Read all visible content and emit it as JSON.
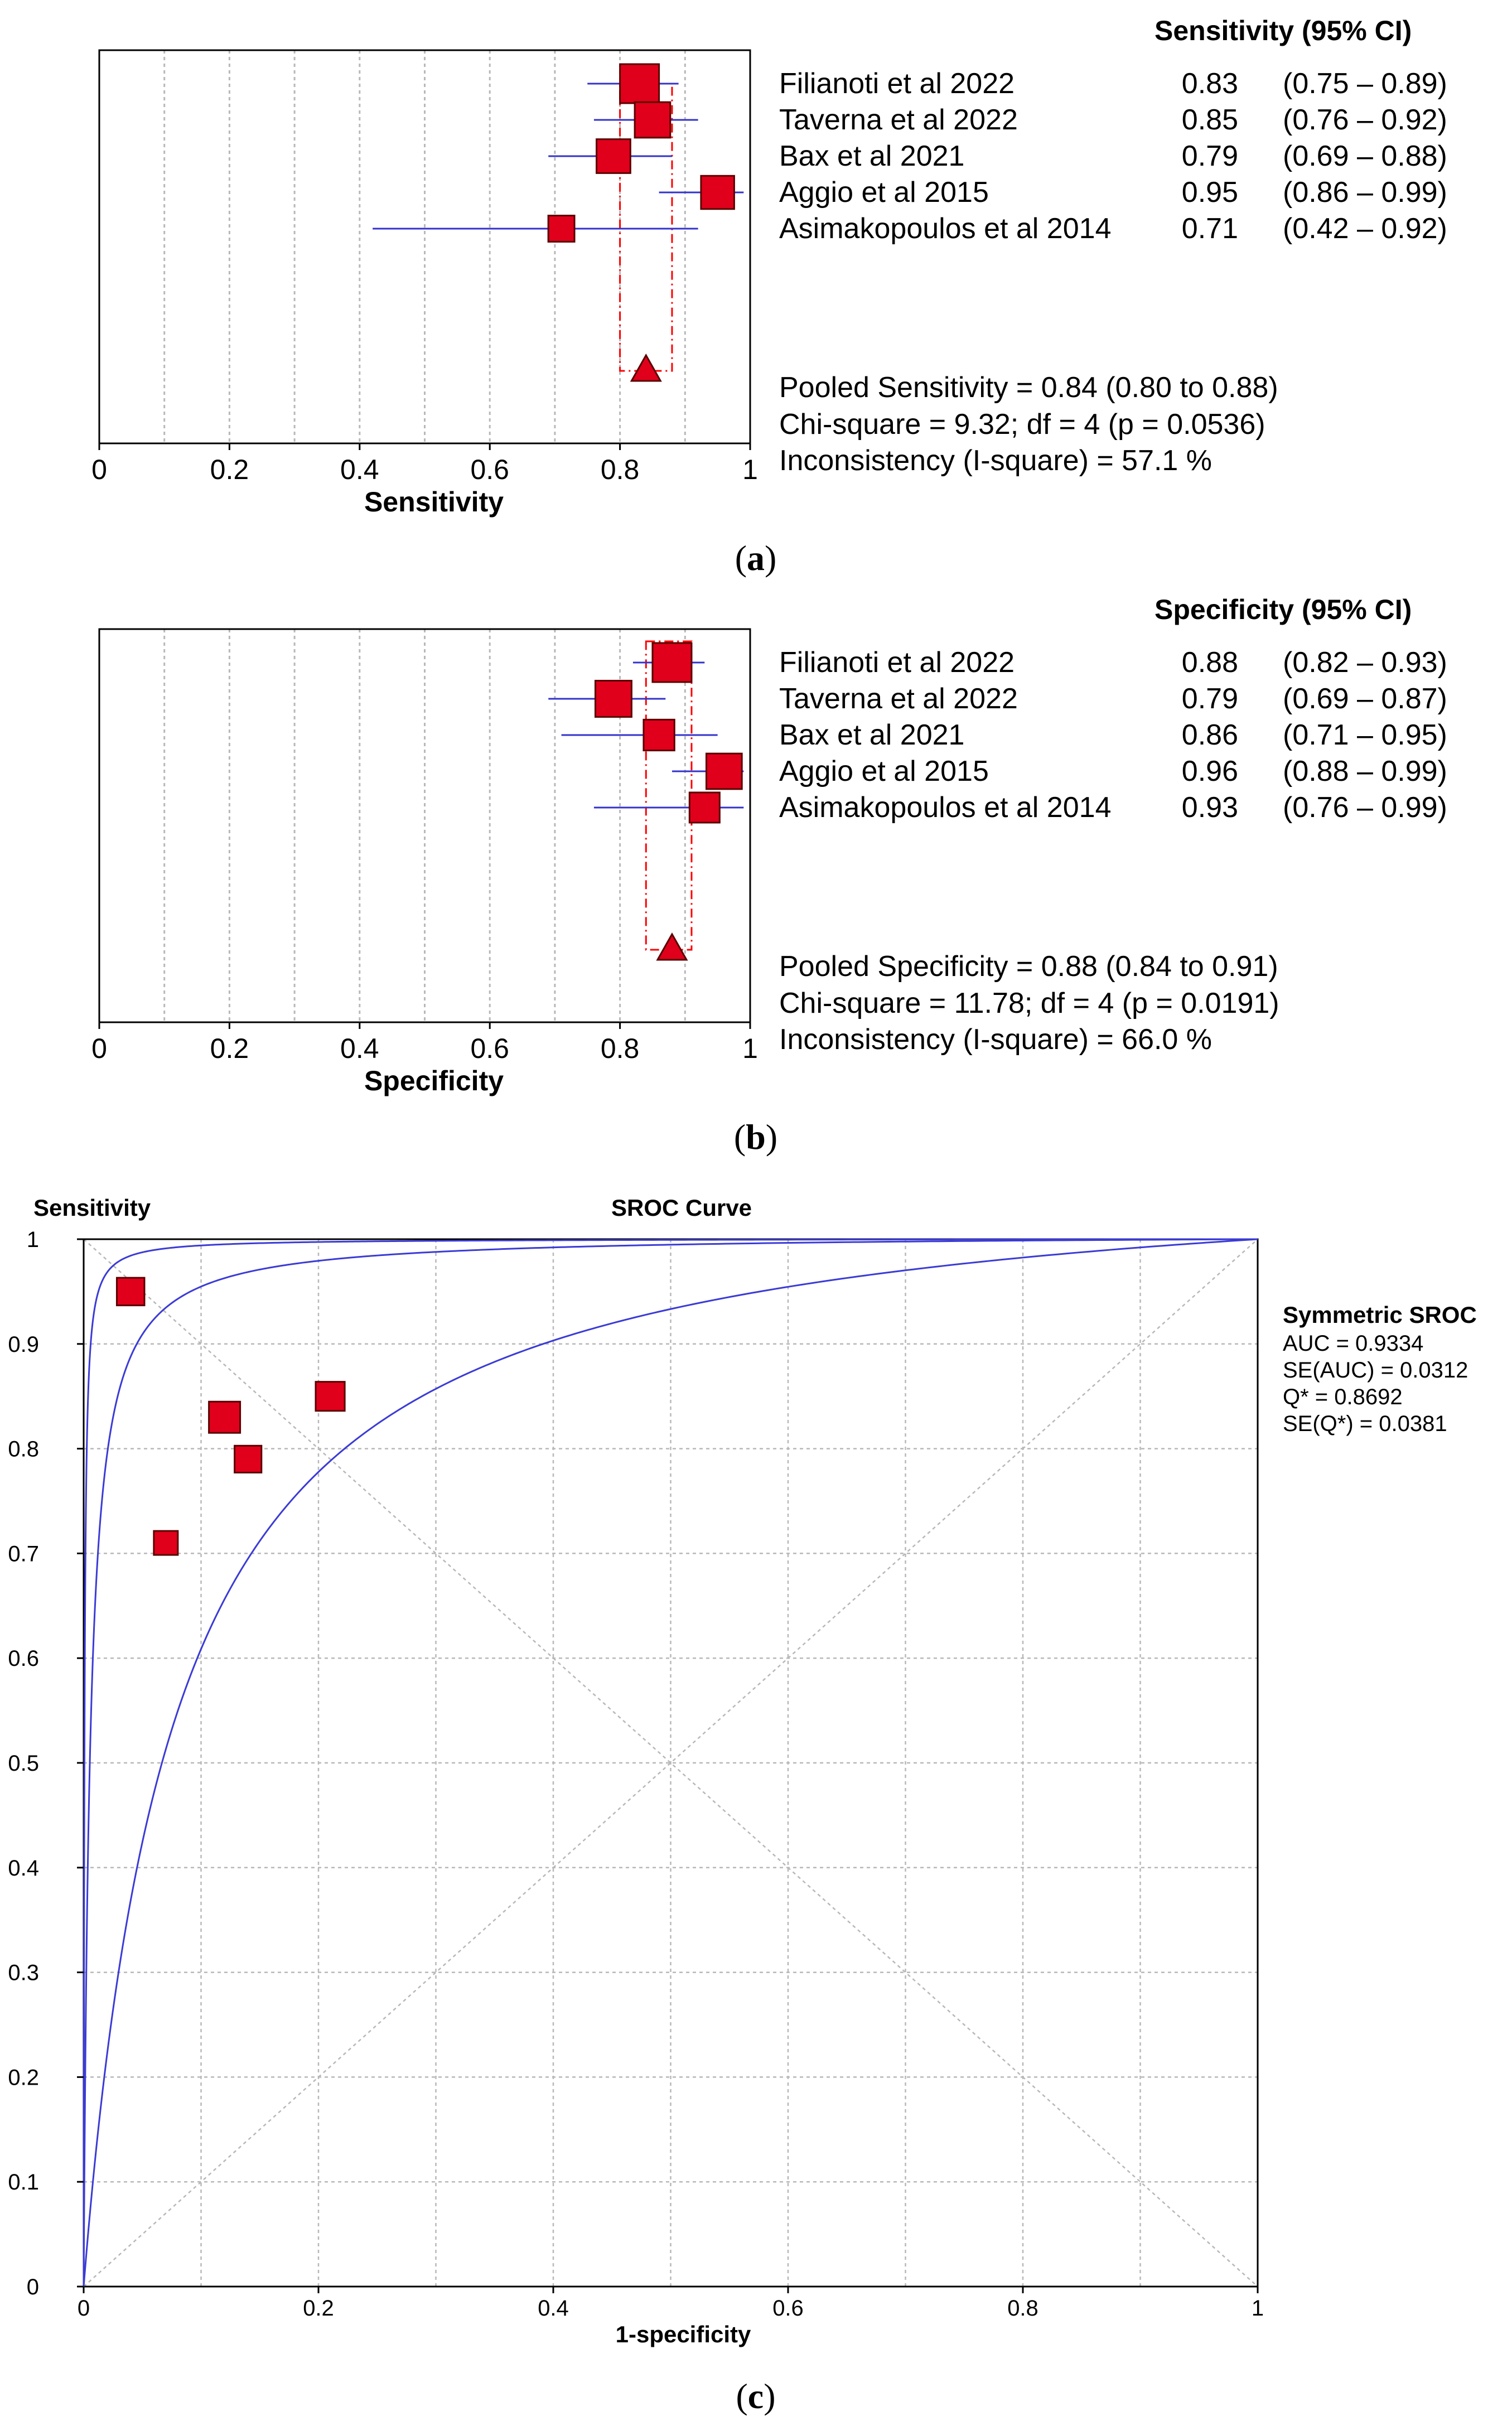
{
  "colors": {
    "marker_fill": "#e0001b",
    "marker_stroke": "#5a0000",
    "ci_line": "#3333cc",
    "pooled_line": "#ff0000",
    "grid": "#b8b8b8",
    "sroc_curve": "#3b3bd6",
    "frame": "#000000"
  },
  "chart_data": [
    {
      "panel": "a",
      "type": "forest",
      "panel_label_letter": "a",
      "panel_label": "(a)",
      "xlabel": "Sensitivity",
      "xlim": [
        0,
        1
      ],
      "x_ticks": [
        0,
        0.2,
        0.4,
        0.6,
        0.8,
        1
      ],
      "tick_labels": [
        "0",
        "0.2",
        "0.4",
        "0.6",
        "0.8",
        "1"
      ],
      "grid_x": [
        0.1,
        0.2,
        0.3,
        0.4,
        0.5,
        0.6,
        0.7,
        0.8,
        0.9
      ],
      "table_header": "Sensitivity (95% CI)",
      "studies": [
        {
          "name": "Filianoti et al 2022",
          "estimate": 0.83,
          "lower": 0.75,
          "upper": 0.89,
          "value_text": "0.83",
          "ci_text": "(0.75 – 0.89)",
          "weight": 1.0
        },
        {
          "name": "Taverna et al 2022",
          "estimate": 0.85,
          "lower": 0.76,
          "upper": 0.92,
          "value_text": "0.85",
          "ci_text": "(0.76 – 0.92)",
          "weight": 0.85
        },
        {
          "name": "Bax et al 2021",
          "estimate": 0.79,
          "lower": 0.69,
          "upper": 0.88,
          "value_text": "0.79",
          "ci_text": "(0.69 – 0.88)",
          "weight": 0.78
        },
        {
          "name": "Aggio et al 2015",
          "estimate": 0.95,
          "lower": 0.86,
          "upper": 0.99,
          "value_text": "0.95",
          "ci_text": "(0.86 – 0.99)",
          "weight": 0.75
        },
        {
          "name": "Asimakopoulos et al 2014",
          "estimate": 0.71,
          "lower": 0.42,
          "upper": 0.92,
          "value_text": "0.71",
          "ci_text": "(0.42 – 0.92)",
          "weight": 0.45
        }
      ],
      "pooled": {
        "estimate": 0.84,
        "lower": 0.8,
        "upper": 0.88
      },
      "summary_lines": [
        "Pooled Sensitivity =  0.84  (0.80 to 0.88)",
        "Chi-square = 9.32; df =  4 (p = 0.0536)",
        "Inconsistency (I-square) = 57.1 %"
      ]
    },
    {
      "panel": "b",
      "type": "forest",
      "panel_label_letter": "b",
      "panel_label": "(b)",
      "xlabel": "Specificity",
      "xlim": [
        0,
        1
      ],
      "x_ticks": [
        0,
        0.2,
        0.4,
        0.6,
        0.8,
        1
      ],
      "tick_labels": [
        "0",
        "0.2",
        "0.4",
        "0.6",
        "0.8",
        "1"
      ],
      "grid_x": [
        0.1,
        0.2,
        0.3,
        0.4,
        0.5,
        0.6,
        0.7,
        0.8,
        0.9
      ],
      "table_header": "Specificity (95% CI)",
      "studies": [
        {
          "name": "Filianoti et al 2022",
          "estimate": 0.88,
          "lower": 0.82,
          "upper": 0.93,
          "value_text": "0.88",
          "ci_text": "(0.82 – 0.93)",
          "weight": 1.0
        },
        {
          "name": "Taverna et al 2022",
          "estimate": 0.79,
          "lower": 0.69,
          "upper": 0.87,
          "value_text": "0.79",
          "ci_text": "(0.69 – 0.87)",
          "weight": 0.88
        },
        {
          "name": "Bax et al 2021",
          "estimate": 0.86,
          "lower": 0.71,
          "upper": 0.95,
          "value_text": "0.86",
          "ci_text": "(0.71 – 0.95)",
          "weight": 0.65
        },
        {
          "name": "Aggio et al 2015",
          "estimate": 0.96,
          "lower": 0.88,
          "upper": 0.99,
          "value_text": "0.96",
          "ci_text": "(0.88 – 0.99)",
          "weight": 0.85
        },
        {
          "name": "Asimakopoulos et al 2014",
          "estimate": 0.93,
          "lower": 0.76,
          "upper": 0.99,
          "value_text": "0.93",
          "ci_text": "(0.76 – 0.99)",
          "weight": 0.62
        }
      ],
      "pooled": {
        "estimate": 0.88,
        "lower": 0.84,
        "upper": 0.91
      },
      "summary_lines": [
        "Pooled Specificity = 0.88  (0.84 to 0.91)",
        "Chi-square = 11.78; df =  4 (p = 0.0191)",
        "Inconsistency (I-square) = 66.0 %"
      ]
    },
    {
      "panel": "c",
      "type": "scatter",
      "panel_label_letter": "c",
      "panel_label": "(c)",
      "title": "SROC Curve",
      "xlabel": "1-specificity",
      "ylabel": "Sensitivity",
      "xlim": [
        0,
        1
      ],
      "ylim": [
        0,
        1
      ],
      "x_ticks": [
        0,
        0.2,
        0.4,
        0.6,
        0.8,
        1
      ],
      "x_tick_labels": [
        "0",
        "0.2",
        "0.4",
        "0.6",
        "0.8",
        "1"
      ],
      "y_ticks": [
        0,
        0.1,
        0.2,
        0.3,
        0.4,
        0.5,
        0.6,
        0.7,
        0.8,
        0.9,
        1
      ],
      "y_tick_labels": [
        "0",
        "0.1",
        "0.2",
        "0.3",
        "0.4",
        "0.5",
        "0.6",
        "0.7",
        "0.8",
        "0.9",
        "1"
      ],
      "grid_x": [
        0.1,
        0.2,
        0.3,
        0.4,
        0.5,
        0.6,
        0.7,
        0.8,
        0.9
      ],
      "grid_y": [
        0.1,
        0.2,
        0.3,
        0.4,
        0.5,
        0.6,
        0.7,
        0.8,
        0.9
      ],
      "points": [
        {
          "name": "Filianoti et al 2022",
          "x": 0.12,
          "y": 0.83,
          "weight": 1.0
        },
        {
          "name": "Taverna et al 2022",
          "x": 0.21,
          "y": 0.85,
          "weight": 0.85
        },
        {
          "name": "Bax et al 2021",
          "x": 0.14,
          "y": 0.79,
          "weight": 0.7
        },
        {
          "name": "Aggio et al 2015",
          "x": 0.04,
          "y": 0.95,
          "weight": 0.75
        },
        {
          "name": "Asimakopoulos et al 2014",
          "x": 0.07,
          "y": 0.71,
          "weight": 0.5
        }
      ],
      "curves": [
        {
          "name": "sroc-upper",
          "dor": 1500
        },
        {
          "name": "sroc-fit",
          "dor": 190
        },
        {
          "name": "sroc-lower",
          "dor": 14
        }
      ],
      "legend_title": "Symmetric SROC",
      "legend_lines": [
        "AUC = 0.9334",
        "SE(AUC) = 0.0312",
        "Q* = 0.8692",
        "SE(Q*) = 0.0381"
      ]
    }
  ]
}
